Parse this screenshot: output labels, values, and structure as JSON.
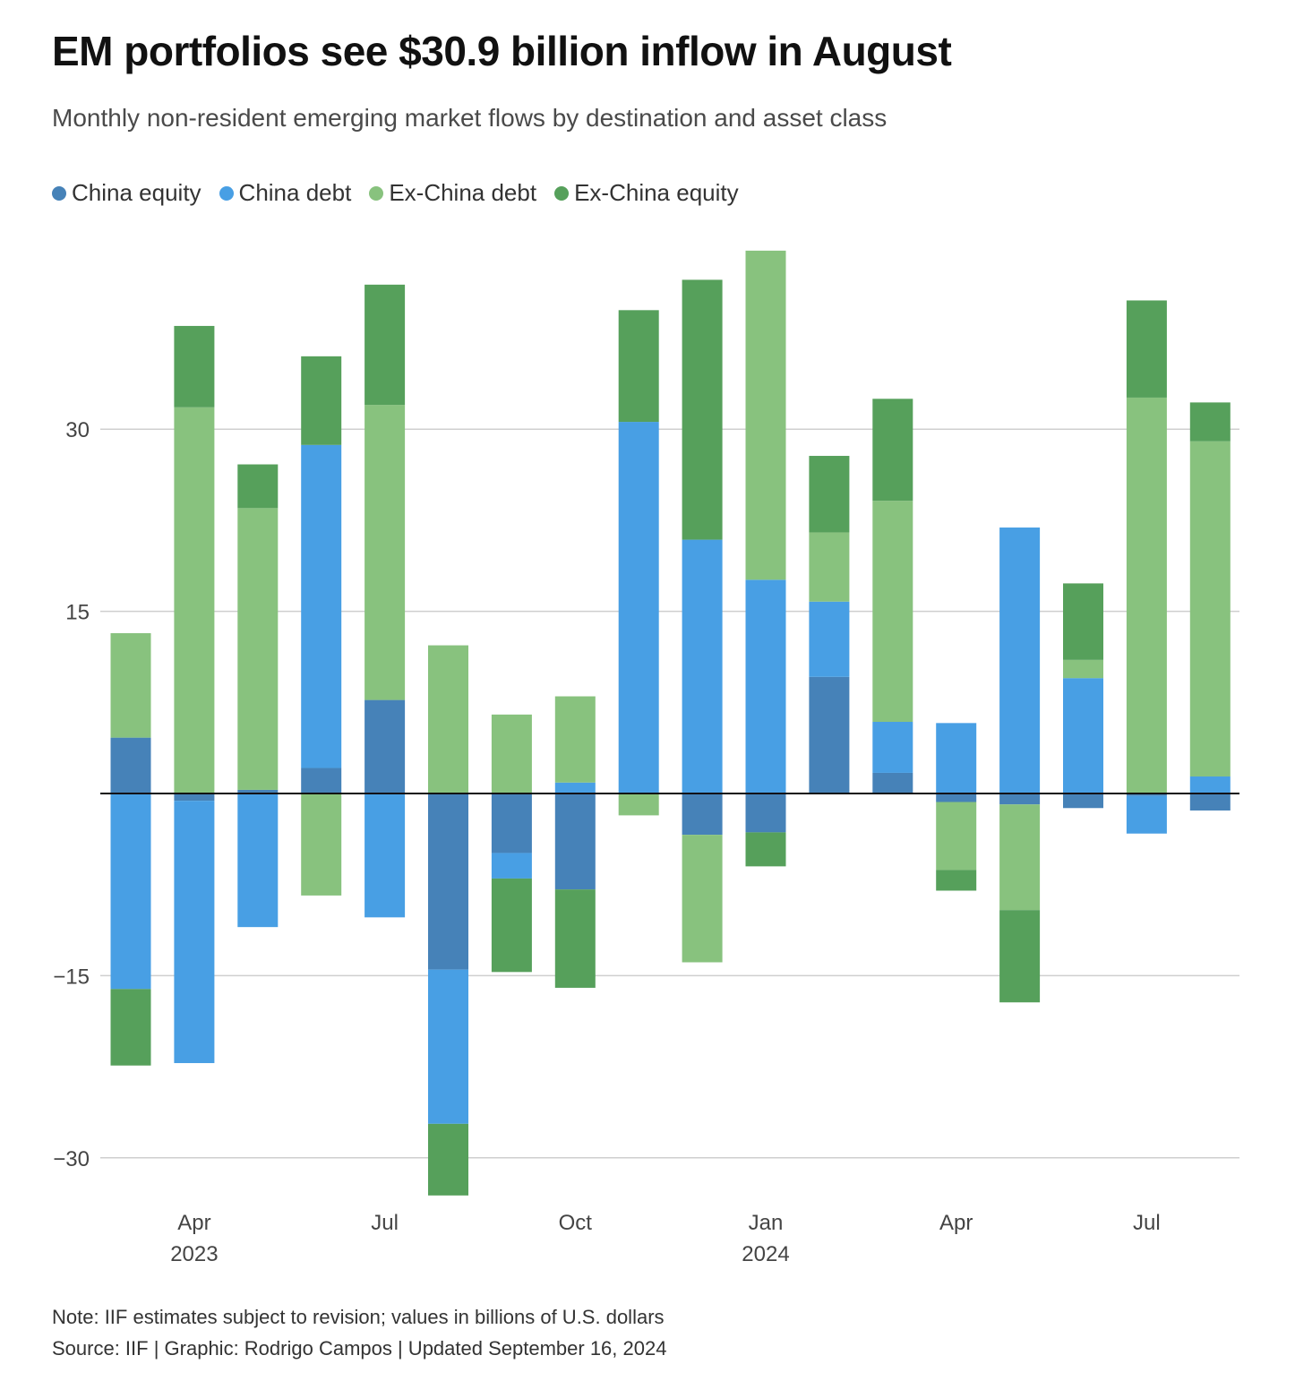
{
  "title": "EM portfolios see $30.9 billion inflow in August",
  "subtitle": "Monthly non-resident emerging market flows by destination and asset class",
  "note": "Note: IIF estimates subject to revision; values in billions of U.S. dollars",
  "source": "Source: IIF | Graphic: Rodrigo Campos | Updated September 16, 2024",
  "chart_data": {
    "type": "bar",
    "stacked": true,
    "categories": [
      "Mar 2023",
      "Apr 2023",
      "May 2023",
      "Jun 2023",
      "Jul 2023",
      "Aug 2023",
      "Sep 2023",
      "Oct 2023",
      "Nov 2023",
      "Dec 2023",
      "Jan 2024",
      "Feb 2024",
      "Mar 2024",
      "Apr 2024",
      "May 2024",
      "Jun 2024",
      "Jul 2024",
      "Aug 2024"
    ],
    "series": [
      {
        "name": "China equity",
        "color": "#4682b8",
        "values": [
          4.6,
          -0.6,
          0.3,
          2.1,
          7.7,
          -14.5,
          -4.9,
          -7.9,
          0,
          -3.4,
          -3.2,
          9.6,
          1.7,
          -0.7,
          -0.9,
          -1.2,
          -0.2,
          -1.4
        ]
      },
      {
        "name": "China debt",
        "color": "#489fe4",
        "values": [
          -16.1,
          -21.6,
          -11.0,
          26.6,
          -10.2,
          -12.7,
          -2.1,
          0.9,
          30.6,
          20.9,
          17.6,
          6.2,
          4.2,
          5.8,
          21.9,
          9.5,
          -3.1,
          1.4
        ]
      },
      {
        "name": "Ex-China debt",
        "color": "#88c27e",
        "values": [
          8.6,
          31.8,
          23.2,
          -8.4,
          24.3,
          12.2,
          6.5,
          7.1,
          -1.8,
          -10.5,
          27.1,
          5.7,
          18.2,
          -5.6,
          -8.7,
          1.5,
          32.6,
          27.6
        ]
      },
      {
        "name": "Ex-China equity",
        "color": "#56a05b",
        "values": [
          -6.3,
          6.7,
          3.6,
          7.3,
          9.9,
          -5.9,
          -7.7,
          -8.1,
          9.2,
          21.4,
          -2.8,
          6.3,
          8.4,
          -1.7,
          -7.6,
          6.3,
          8.0,
          3.2
        ]
      }
    ],
    "ylim": [
      -33,
      45
    ],
    "y_ticks": [
      -30,
      -15,
      15,
      30
    ],
    "y_tick_labels": [
      "−30",
      "−15",
      "15",
      "30"
    ],
    "x_tick_labels": [
      {
        "index": 1,
        "month": "Apr",
        "year": "2023"
      },
      {
        "index": 4,
        "month": "Jul",
        "year": ""
      },
      {
        "index": 7,
        "month": "Oct",
        "year": ""
      },
      {
        "index": 10,
        "month": "Jan",
        "year": "2024"
      },
      {
        "index": 13,
        "month": "Apr",
        "year": ""
      },
      {
        "index": 16,
        "month": "Jul",
        "year": ""
      }
    ],
    "legend_position": "top-left",
    "grid": true
  }
}
